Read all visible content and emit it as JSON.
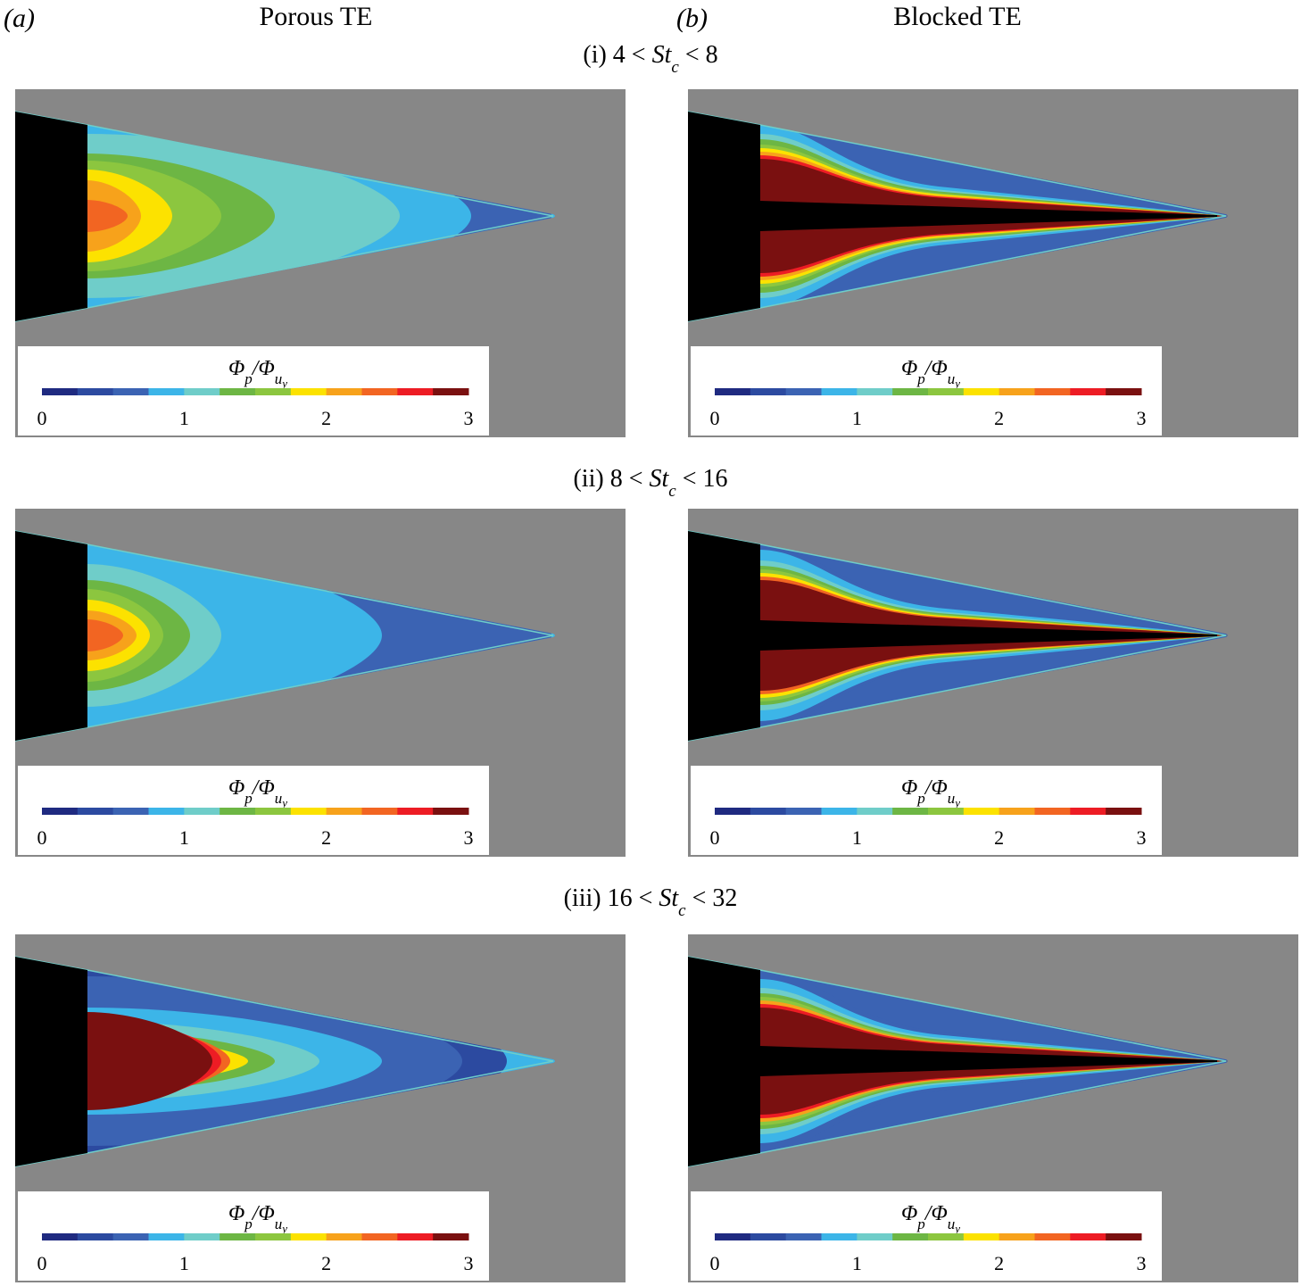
{
  "header": {
    "left_label": "(a)",
    "left_title": "Porous TE",
    "right_label": "(b)",
    "right_title": "Blocked TE"
  },
  "rows": [
    {
      "parts": [
        "(i) 4 < ",
        "St",
        "c",
        " < 8"
      ]
    },
    {
      "parts": [
        "(ii) 8 < ",
        "St",
        "c",
        " < 16"
      ]
    },
    {
      "parts": [
        "(iii) 16 < ",
        "St",
        "c",
        " < 32"
      ]
    }
  ],
  "colorbar": {
    "label": [
      "Φ",
      "p",
      "/Φ",
      "u",
      "y"
    ],
    "ticks": [
      0,
      1,
      2,
      3
    ],
    "range": [
      0,
      3
    ],
    "colors": [
      "#1f2a80",
      "#2c4aa0",
      "#3b63b3",
      "#3cb5e8",
      "#6fcdc9",
      "#6db644",
      "#8cc63f",
      "#fce200",
      "#f7a21b",
      "#f26522",
      "#ed1c24",
      "#7a1010"
    ]
  }
}
